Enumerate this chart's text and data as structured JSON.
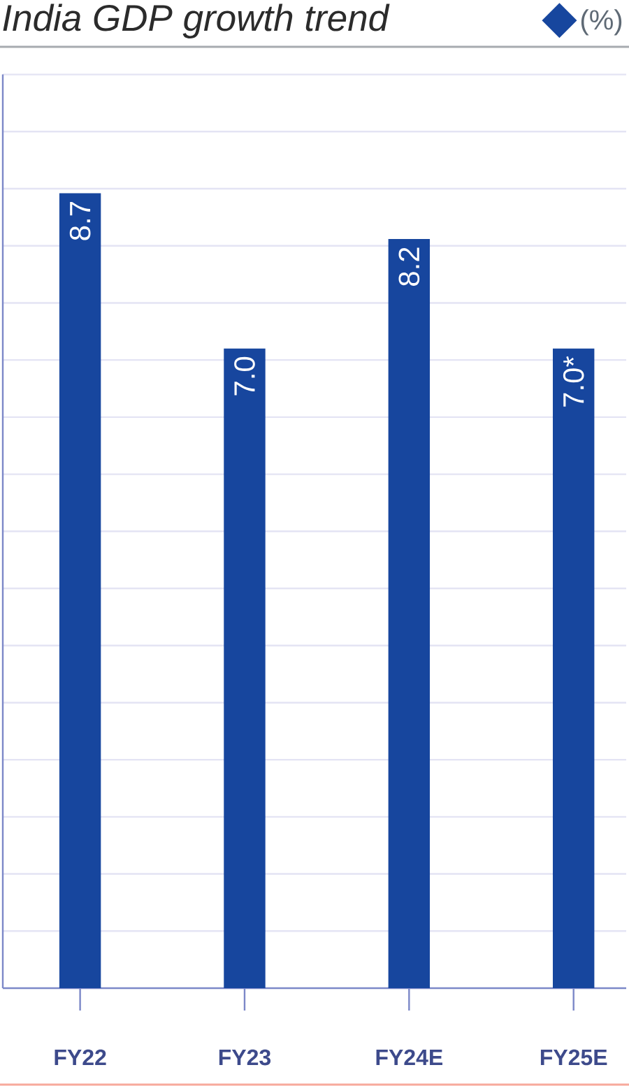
{
  "chart_data": {
    "type": "bar",
    "title": "India GDP growth trend",
    "categories": [
      "FY22",
      "FY23",
      "FY24E",
      "FY25E"
    ],
    "series": [
      {
        "name": "(%)",
        "color": "#17469e",
        "values": [
          8.7,
          7.0,
          8.2,
          7.0
        ],
        "value_labels": [
          "8.7",
          "7.0",
          "8.2",
          "7.0*"
        ]
      }
    ],
    "ylim": [
      0,
      10
    ],
    "yticks": [
      {
        "value": 0.625,
        "label": null
      },
      {
        "value": 1.25,
        "label": null
      },
      {
        "value": 1.875,
        "label": null
      },
      {
        "value": 2.5,
        "label": null
      },
      {
        "value": 3.125,
        "label": null
      },
      {
        "value": 3.75,
        "label": null
      },
      {
        "value": 4.375,
        "label": null
      },
      {
        "value": 5,
        "label": null
      },
      {
        "value": 5.625,
        "label": null
      },
      {
        "value": 6.25,
        "label": null
      },
      {
        "value": 6.875,
        "label": null
      },
      {
        "value": 7.5,
        "label": null
      },
      {
        "value": 8.125,
        "label": null
      },
      {
        "value": 8.75,
        "label": null
      },
      {
        "value": 9.375,
        "label": null
      },
      {
        "value": 10,
        "label": null
      }
    ],
    "grid": "y",
    "legend": "top right",
    "tick_labels": "x"
  }
}
